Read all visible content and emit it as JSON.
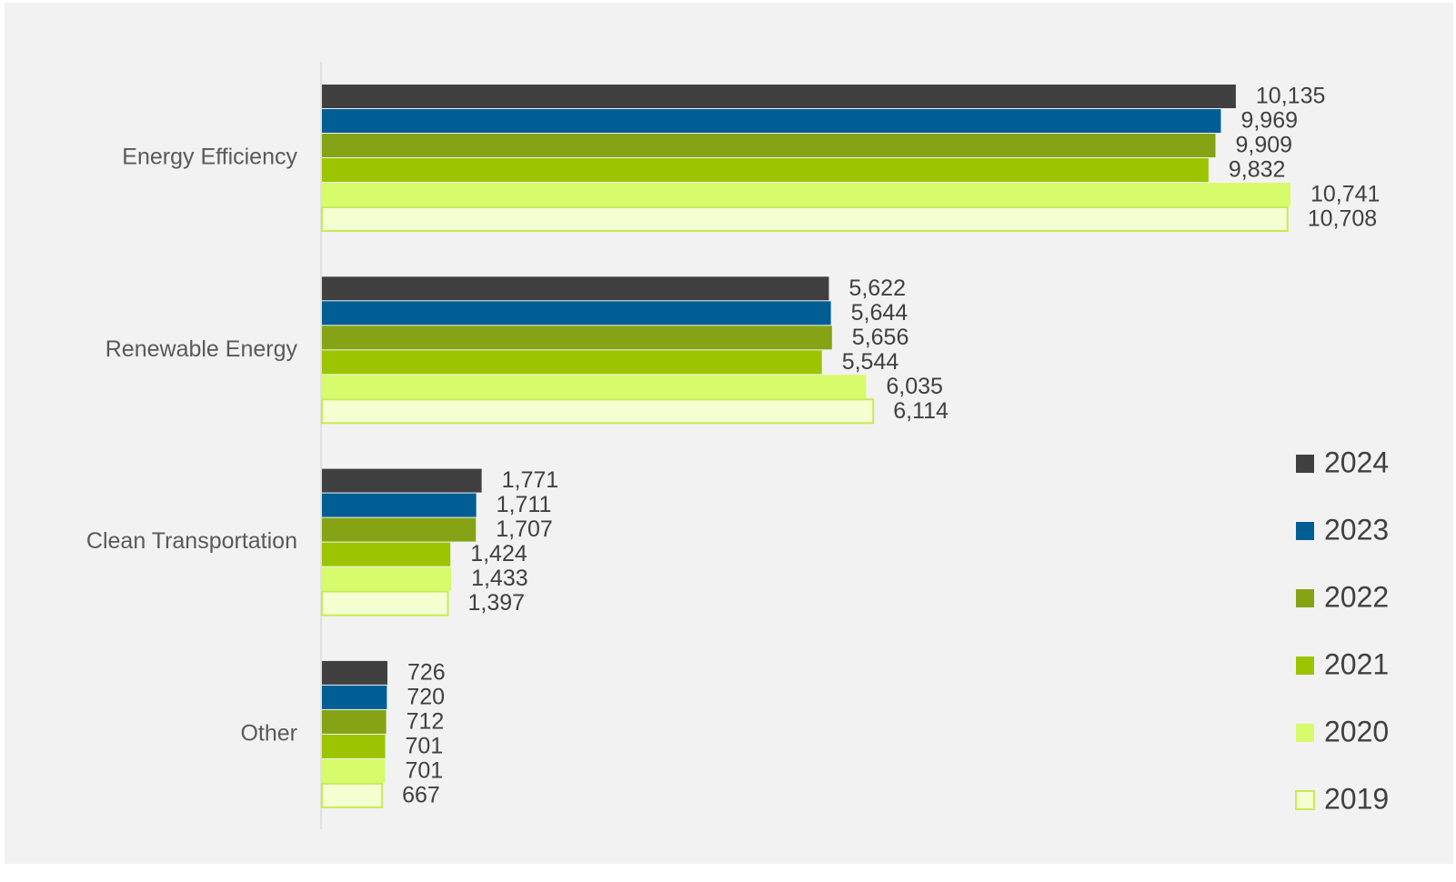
{
  "chart_data": {
    "type": "bar",
    "orientation": "horizontal",
    "categories": [
      "Energy Efficiency",
      "Renewable Energy",
      "Clean Transportation",
      "Other"
    ],
    "series": [
      {
        "name": "2024",
        "values": [
          10135,
          5622,
          1771,
          726
        ],
        "labels": [
          "10,135",
          "5,622",
          "1,771",
          "726"
        ],
        "color": "#404040"
      },
      {
        "name": "2023",
        "values": [
          9969,
          5644,
          1711,
          720
        ],
        "labels": [
          "9,969",
          "5,644",
          "1,711",
          "720"
        ],
        "color": "#005e94"
      },
      {
        "name": "2022",
        "values": [
          9909,
          5656,
          1707,
          712
        ],
        "labels": [
          "9,909",
          "5,656",
          "1,707",
          "712"
        ],
        "color": "#86a315"
      },
      {
        "name": "2021",
        "values": [
          9832,
          5544,
          1424,
          701
        ],
        "labels": [
          "9,832",
          "5,544",
          "1,424",
          "701"
        ],
        "color": "#9cc400"
      },
      {
        "name": "2020",
        "values": [
          10741,
          6035,
          1433,
          701
        ],
        "labels": [
          "10,741",
          "6,035",
          "1,433",
          "701"
        ],
        "color": "#d7fb6a"
      },
      {
        "name": "2019",
        "values": [
          10708,
          6114,
          1397,
          667
        ],
        "labels": [
          "10,708",
          "6,114",
          "1,397",
          "667"
        ],
        "color": "#f4ffd2",
        "border": "#c8ea55"
      }
    ],
    "xlim": [
      0,
      11000
    ],
    "title": "",
    "xlabel": "",
    "ylabel": "",
    "grid": false,
    "legend_position": "right",
    "background": "#f2f2f2"
  }
}
